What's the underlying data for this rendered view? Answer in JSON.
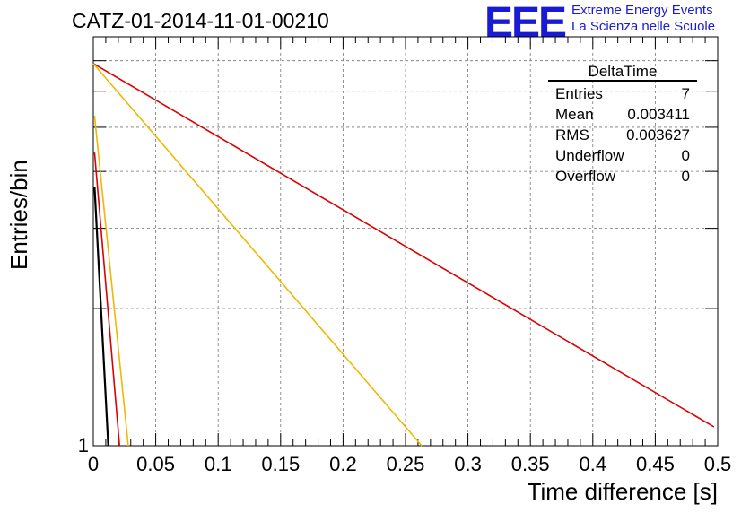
{
  "title": "CATZ-01-2014-11-01-00210",
  "logo": {
    "mark": "EEE",
    "line1": "Extreme Energy Events",
    "line2": "La Scienza nelle Scuole",
    "color": "#1a1ad6"
  },
  "stats": {
    "name": "DeltaTime",
    "rows": [
      {
        "label": "Entries",
        "value": "7"
      },
      {
        "label": "Mean",
        "value": "0.003411"
      },
      {
        "label": "RMS",
        "value": "0.003627"
      },
      {
        "label": "Underflow",
        "value": "0"
      },
      {
        "label": "Overflow",
        "value": "0"
      }
    ]
  },
  "chart_data": {
    "type": "line",
    "title": "CATZ-01-2014-11-01-00210",
    "xlabel": "Time difference [s]",
    "ylabel": "Entries/bin",
    "xlim": [
      0,
      0.5
    ],
    "log_y": true,
    "y_tick_labels": [
      "1"
    ],
    "x_ticks": [
      "0",
      "0.05",
      "0.1",
      "0.15",
      "0.2",
      "0.25",
      "0.3",
      "0.35",
      "0.4",
      "0.45",
      "0.5"
    ],
    "grid": true,
    "series": [
      {
        "color": "#dd0000",
        "x": [
          0.0,
          0.497
        ],
        "y": [
          6.9,
          1.1
        ]
      },
      {
        "color": "#f0b800",
        "x": [
          0.0,
          0.263
        ],
        "y": [
          6.9,
          1.0
        ]
      },
      {
        "color": "#f0b800",
        "x": [
          0.001,
          0.028
        ],
        "y": [
          5.3,
          1.0
        ]
      },
      {
        "color": "#dd0000",
        "x": [
          0.001,
          0.021
        ],
        "y": [
          4.4,
          1.0
        ]
      },
      {
        "color": "#000000",
        "x": [
          0.001,
          0.012
        ],
        "y": [
          3.7,
          1.0
        ]
      }
    ]
  }
}
